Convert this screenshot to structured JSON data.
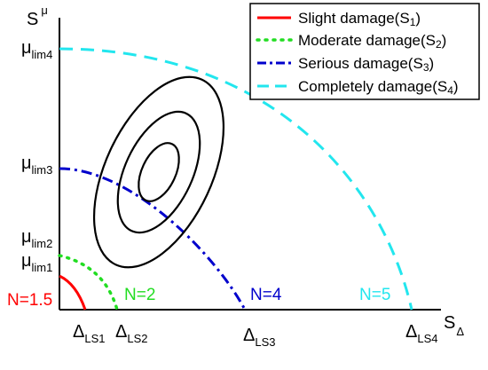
{
  "chart_data": {
    "type": "diagram",
    "axes": {
      "y_label": {
        "main": "S",
        "sup": "μ"
      },
      "x_label": {
        "main": "S",
        "sub": "Δ"
      }
    },
    "y_ticks": [
      {
        "main": "μ",
        "sub": "lim4"
      },
      {
        "main": "μ",
        "sub": "lim3"
      },
      {
        "main": "μ",
        "sub": "lim2"
      },
      {
        "main": "μ",
        "sub": "lim1"
      }
    ],
    "x_ticks": [
      {
        "main": "Δ",
        "sub": "LS1"
      },
      {
        "main": "Δ",
        "sub": "LS2"
      },
      {
        "main": "Δ",
        "sub": "LS3"
      },
      {
        "main": "Δ",
        "sub": "LS4"
      }
    ],
    "legend": {
      "position": "top-right",
      "items": [
        {
          "text": "Slight damage(S",
          "sub": "1",
          "end": ")",
          "color": "#ff0000",
          "style": "solid"
        },
        {
          "text": "Moderate damage(S",
          "sub": "2",
          "end": ")",
          "color": "#22dd22",
          "style": "dotted"
        },
        {
          "text": "Serious damage(S",
          "sub": "3",
          "end": ")",
          "color": "#0000cc",
          "style": "dashdot"
        },
        {
          "text": "Completely damage(S",
          "sub": "4",
          "end": ")",
          "color": "#22e6ee",
          "style": "dashed"
        }
      ]
    },
    "curve_labels": [
      {
        "text": "N=1.5",
        "color": "#ff0000"
      },
      {
        "text": "N=2",
        "color": "#22dd22"
      },
      {
        "text": "N=4",
        "color": "#0000cc"
      },
      {
        "text": "N=5",
        "color": "#22e6ee"
      }
    ],
    "limit_state_curves": 4,
    "contour_ellipses": 3,
    "contour_color": "#000000"
  }
}
